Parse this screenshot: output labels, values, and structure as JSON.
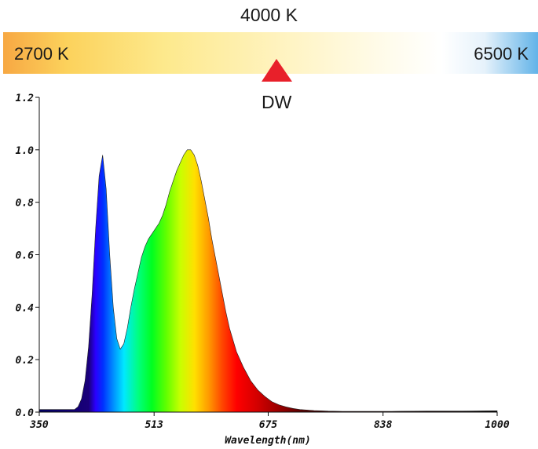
{
  "cct_scale": {
    "title": "4000 K",
    "min_label": "2700 K",
    "max_label": "6500 K",
    "marker_label": "DW",
    "marker_color": "#e8202a"
  },
  "chart_data": {
    "type": "area",
    "title": "",
    "xlabel": "Wavelength(nm)",
    "ylabel": "",
    "xlim": [
      350,
      1000
    ],
    "ylim": [
      0,
      1.2
    ],
    "x_ticks": [
      350,
      513,
      675,
      838,
      1000
    ],
    "x_tick_labels": [
      "350",
      "513",
      "675",
      "838",
      "1000"
    ],
    "y_ticks": [
      0,
      0.2,
      0.4,
      0.6,
      0.8,
      1.0,
      1.2
    ],
    "y_tick_labels": [
      "0.0",
      "0.2",
      "0.4",
      "0.6",
      "0.8",
      "1.0",
      "1.2"
    ],
    "grid": false,
    "legend": "none",
    "fill": "visible-spectrum gradient",
    "series": [
      {
        "x": [
          350,
          390,
          400,
          405,
          410,
          415,
          420,
          425,
          430,
          435,
          440,
          445,
          450,
          455,
          460,
          465,
          470,
          475,
          480,
          485,
          490,
          495,
          500,
          505,
          510,
          515,
          520,
          525,
          530,
          535,
          540,
          545,
          550,
          555,
          560,
          565,
          570,
          575,
          580,
          585,
          590,
          595,
          600,
          605,
          610,
          615,
          620,
          630,
          640,
          650,
          660,
          670,
          680,
          690,
          700,
          710,
          720,
          740,
          760,
          780,
          800,
          850,
          900,
          950,
          1000
        ],
        "y": [
          0.01,
          0.01,
          0.01,
          0.02,
          0.05,
          0.12,
          0.25,
          0.45,
          0.7,
          0.9,
          0.98,
          0.85,
          0.6,
          0.4,
          0.28,
          0.24,
          0.26,
          0.32,
          0.4,
          0.47,
          0.53,
          0.59,
          0.63,
          0.66,
          0.68,
          0.7,
          0.72,
          0.75,
          0.79,
          0.84,
          0.88,
          0.92,
          0.95,
          0.98,
          1.0,
          1.0,
          0.98,
          0.94,
          0.88,
          0.81,
          0.74,
          0.66,
          0.59,
          0.52,
          0.45,
          0.38,
          0.32,
          0.23,
          0.17,
          0.12,
          0.085,
          0.06,
          0.04,
          0.028,
          0.02,
          0.014,
          0.01,
          0.006,
          0.004,
          0.003,
          0.003,
          0.003,
          0.004,
          0.004,
          0.005
        ]
      }
    ]
  }
}
